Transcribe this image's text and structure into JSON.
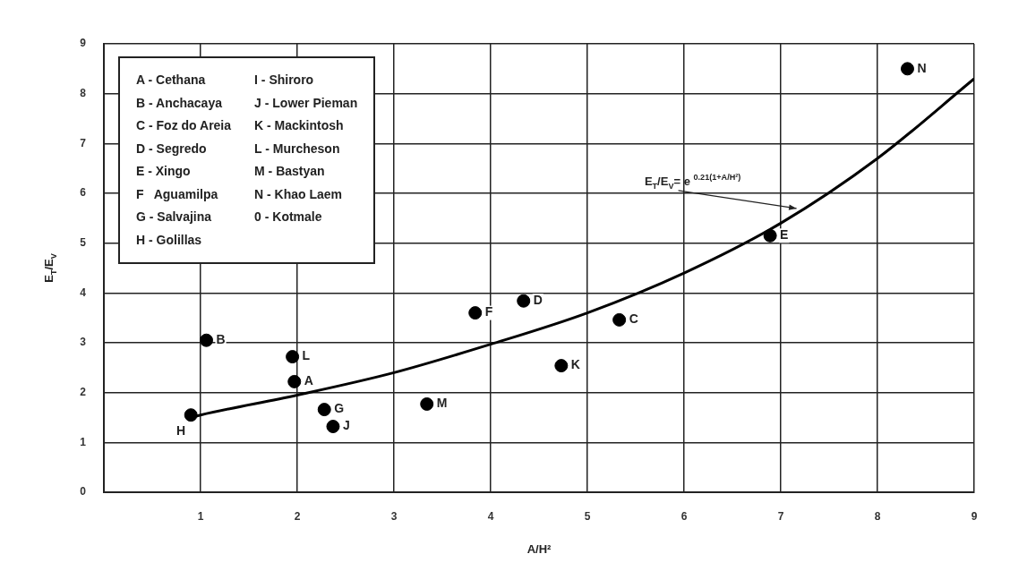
{
  "chart_data": {
    "type": "scatter",
    "xlabel": "A/H²",
    "ylabel": "E$_{T}$/E$_{V}$",
    "xlim": [
      0,
      9
    ],
    "ylim": [
      0,
      9
    ],
    "xticks": [
      1,
      2,
      3,
      4,
      5,
      6,
      7,
      8,
      9
    ],
    "yticks": [
      0,
      1,
      2,
      3,
      4,
      5,
      6,
      7,
      8,
      9
    ],
    "grid": true,
    "legend": false,
    "marker": "circle",
    "series": [
      {
        "color": "#000000",
        "x": [
          1.97,
          1.06,
          5.33,
          4.34,
          6.89,
          3.84,
          2.28,
          0.9,
          2.37,
          4.73,
          1.95,
          3.34,
          8.31
        ],
        "values": [
          2.22,
          3.05,
          3.46,
          3.84,
          5.15,
          3.6,
          1.66,
          1.55,
          1.32,
          2.54,
          2.72,
          1.77,
          8.5
        ]
      },
      {
        "type": "line",
        "color": "#000000",
        "line_style": "solid",
        "marker": "none",
        "x": [
          0.9,
          1,
          2,
          3,
          4,
          5,
          6,
          7,
          8,
          9
        ],
        "values": [
          1.5,
          1.55,
          1.95,
          2.4,
          2.97,
          3.6,
          4.4,
          5.4,
          6.7,
          8.3
        ]
      }
    ],
    "annotations": [
      "A - Cethana",
      "B - Anchacaya",
      "C - Foz do Areia",
      "D - Segredo",
      "E - Xingo",
      "F   Aguamilpa",
      "G - Salvajina",
      "H - Golillas",
      "I - Shiroro",
      "J - Lower Pieman",
      "K - Mackintosh",
      "L - Murcheson",
      "M - Bastyan",
      "N - Khao Laem",
      "0 - Kotmale",
      {
        "text": "A",
        "x": 1.97,
        "y": 2.22
      },
      {
        "text": "B",
        "x": 1.06,
        "y": 3.05
      },
      {
        "text": "C",
        "x": 5.33,
        "y": 3.46
      },
      {
        "text": "D",
        "x": 4.34,
        "y": 3.84
      },
      {
        "text": "E",
        "x": 6.89,
        "y": 5.15
      },
      {
        "text": "F",
        "x": 3.84,
        "y": 3.6
      },
      {
        "text": "G",
        "x": 2.28,
        "y": 1.66
      },
      {
        "text": "H",
        "x": 0.9,
        "y": 1.55
      },
      {
        "text": "J",
        "x": 2.37,
        "y": 1.32
      },
      {
        "text": "K",
        "x": 4.73,
        "y": 2.54
      },
      {
        "text": "L",
        "x": 1.95,
        "y": 2.72
      },
      {
        "text": "M",
        "x": 3.34,
        "y": 1.77
      },
      {
        "text": "N",
        "x": 8.31,
        "y": 8.5
      },
      {
        "text": "E$_{T}$/E$_{V}$= e $^{0.21(1+A/H²)}$",
        "x": 7.2,
        "y": 5.66
      }
    ]
  }
}
